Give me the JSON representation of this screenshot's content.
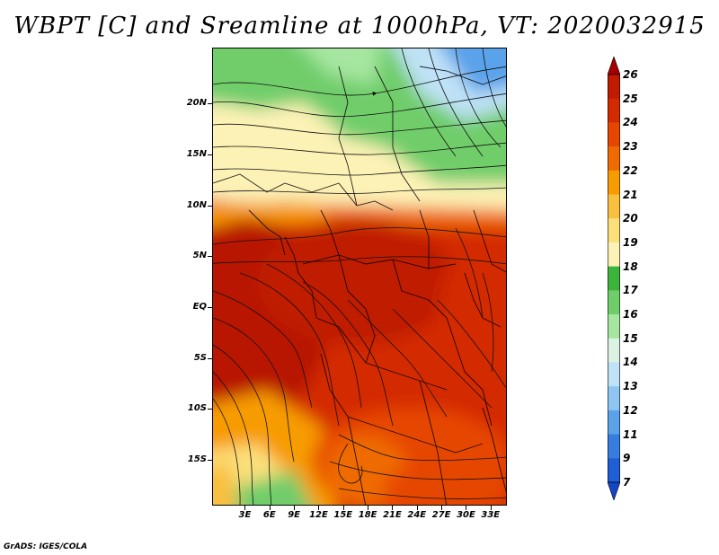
{
  "title": "WBPT [C] and Sreamline at 1000hPa, VT: 2020032915",
  "credit": "GrADS: IGES/COLA",
  "map": {
    "lon_range": [
      -1,
      35
    ],
    "lat_range": [
      -19.5,
      25.5
    ],
    "lat_ticks": [
      "20N",
      "15N",
      "10N",
      "5N",
      "EQ",
      "5S",
      "10S",
      "15S"
    ],
    "lat_values": [
      20,
      15,
      10,
      5,
      0,
      -5,
      -10,
      -15
    ],
    "lon_ticks": [
      "3E",
      "6E",
      "9E",
      "12E",
      "15E",
      "18E",
      "21E",
      "24E",
      "27E",
      "30E",
      "33E"
    ],
    "lon_values": [
      3,
      6,
      9,
      12,
      15,
      18,
      21,
      24,
      27,
      30,
      33
    ]
  },
  "colorbar": {
    "labels": [
      "26",
      "25",
      "24",
      "23",
      "22",
      "21",
      "20",
      "19",
      "18",
      "17",
      "16",
      "15",
      "14",
      "13",
      "12",
      "11",
      "9",
      "7"
    ],
    "colors": [
      "#a50000",
      "#c01a00",
      "#d42a00",
      "#e64600",
      "#ef6a00",
      "#f79c00",
      "#f9c040",
      "#fbe07a",
      "#fdf2b6",
      "#3cb43c",
      "#6fcd6a",
      "#a6e6a0",
      "#dcf3e3",
      "#bfe2f6",
      "#8ec6f1",
      "#5aa2ea",
      "#377de0",
      "#1f5fd6",
      "#1246c4"
    ]
  }
}
